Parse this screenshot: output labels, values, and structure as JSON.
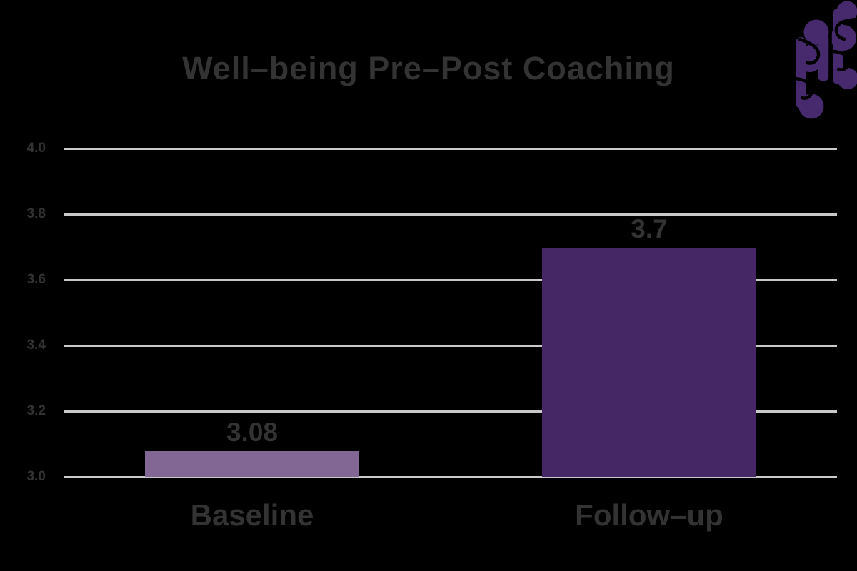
{
  "header": {
    "title": "Well–being Pre–Post Coaching"
  },
  "logo": {
    "description": "brain made of purple comma shapes",
    "color": "#472a6e"
  },
  "colors": {
    "background": "#000000",
    "title_text": "#333333",
    "axis_text": "#333333",
    "gridline": "#c9c9c9"
  },
  "chart_data": {
    "type": "bar",
    "title": "Well–being Pre–Post Coaching",
    "categories": [
      "Baseline",
      "Follow–up"
    ],
    "values": [
      3.08,
      3.7
    ],
    "value_labels": [
      "3.08",
      "3.7"
    ],
    "series_colors": [
      "#826795",
      "#452766"
    ],
    "xlabel": "",
    "ylabel": "",
    "ylim": [
      3.0,
      4.0
    ],
    "yticks": [
      4.0,
      3.8,
      3.6,
      3.4,
      3.2,
      3.0
    ],
    "ytick_labels": [
      "4.0",
      "3.8",
      "3.6",
      "3.4",
      "3.2",
      "3.0"
    ],
    "grid": true,
    "legend": false
  }
}
